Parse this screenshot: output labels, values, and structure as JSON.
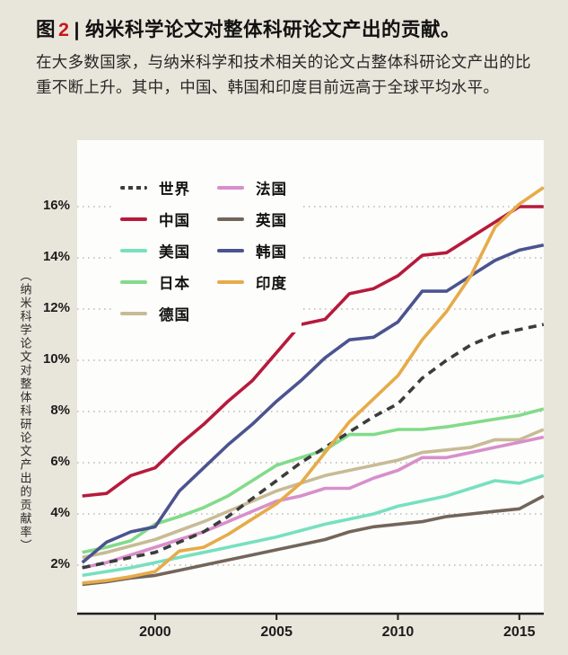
{
  "figure": {
    "title": {
      "prefix": "图",
      "number": "2",
      "separator": "|",
      "text": "纳米科学论文对整体科研论文产出的贡献。"
    },
    "subtitle": "在大多数国家，与纳米科学和技术相关的论文占整体科研论文产出的比重不断上升。其中，中国、韩国和印度目前远高于全球平均水平。"
  },
  "colors": {
    "page_background": "#e8e5da",
    "plot_background": "#fdfdfb",
    "title_number_red": "#c8161d",
    "gridline": "#bcbcb8",
    "axis": "#1f1f1f"
  },
  "chart_data": {
    "type": "line",
    "x": [
      1997,
      1998,
      1999,
      2000,
      2001,
      2002,
      2003,
      2004,
      2005,
      2006,
      2007,
      2008,
      2009,
      2010,
      2011,
      2012,
      2013,
      2014,
      2015,
      2016
    ],
    "x_ticks": [
      2000,
      2005,
      2010,
      2015
    ],
    "y_ticks": [
      2,
      4,
      6,
      8,
      10,
      12,
      14,
      16
    ],
    "y_tick_suffix": "%",
    "ylabel": "（纳米科学论文对整体科研论文产出的贡献率）",
    "ylim": [
      0,
      18.6
    ],
    "grid": "dotted-horizontal",
    "legend_position": "top-left-inside",
    "series": [
      {
        "name": "英国",
        "color": "#73655a",
        "dashed": false,
        "values": [
          1.25,
          1.35,
          1.5,
          1.6,
          1.8,
          2.0,
          2.2,
          2.4,
          2.6,
          2.8,
          3.0,
          3.3,
          3.5,
          3.6,
          3.7,
          3.9,
          4.0,
          4.1,
          4.2,
          4.7
        ]
      },
      {
        "name": "德国",
        "color": "#c7bb97",
        "dashed": false,
        "values": [
          2.3,
          2.5,
          2.75,
          3.0,
          3.35,
          3.7,
          4.1,
          4.5,
          4.9,
          5.2,
          5.5,
          5.7,
          5.9,
          6.1,
          6.4,
          6.5,
          6.6,
          6.9,
          6.9,
          7.3
        ]
      },
      {
        "name": "法国",
        "color": "#d88fcb",
        "dashed": false,
        "values": [
          1.9,
          2.1,
          2.4,
          2.7,
          3.0,
          3.3,
          3.7,
          4.1,
          4.5,
          4.7,
          5.0,
          5.0,
          5.4,
          5.7,
          6.2,
          6.2,
          6.4,
          6.6,
          6.8,
          7.0
        ]
      },
      {
        "name": "美国",
        "color": "#77e0c0",
        "dashed": false,
        "values": [
          1.6,
          1.75,
          1.9,
          2.1,
          2.3,
          2.5,
          2.7,
          2.9,
          3.1,
          3.35,
          3.6,
          3.8,
          4.0,
          4.3,
          4.5,
          4.7,
          5.0,
          5.3,
          5.2,
          5.5
        ]
      },
      {
        "name": "日本",
        "color": "#82db8b",
        "dashed": false,
        "values": [
          2.5,
          2.7,
          2.95,
          3.6,
          3.9,
          4.25,
          4.7,
          5.3,
          5.9,
          6.2,
          6.5,
          7.1,
          7.1,
          7.3,
          7.3,
          7.4,
          7.55,
          7.7,
          7.85,
          8.1
        ]
      },
      {
        "name": "世界",
        "color": "#3c3c3c",
        "dashed": true,
        "values": [
          1.9,
          2.1,
          2.3,
          2.5,
          2.9,
          3.3,
          3.9,
          4.6,
          5.3,
          6.0,
          6.6,
          7.2,
          7.8,
          8.3,
          9.3,
          10.0,
          10.6,
          11.0,
          11.2,
          11.4
        ]
      },
      {
        "name": "韩国",
        "color": "#4b548f",
        "dashed": false,
        "values": [
          2.1,
          2.9,
          3.3,
          3.5,
          4.9,
          5.8,
          6.7,
          7.5,
          8.4,
          9.2,
          10.1,
          10.8,
          10.9,
          11.5,
          12.7,
          12.7,
          13.3,
          13.9,
          14.3,
          14.5
        ]
      },
      {
        "name": "中国",
        "color": "#b61a3c",
        "dashed": false,
        "values": [
          4.7,
          4.8,
          5.5,
          5.8,
          6.7,
          7.5,
          8.4,
          9.2,
          10.3,
          11.4,
          11.6,
          12.6,
          12.8,
          13.3,
          14.1,
          14.2,
          14.8,
          15.4,
          16.0,
          16.0
        ]
      },
      {
        "name": "印度",
        "color": "#e6ab49",
        "dashed": false,
        "values": [
          1.3,
          1.4,
          1.55,
          1.75,
          2.55,
          2.7,
          3.2,
          3.8,
          4.4,
          5.2,
          6.4,
          7.6,
          8.5,
          9.4,
          10.8,
          11.9,
          13.3,
          15.2,
          16.1,
          16.75
        ]
      }
    ],
    "legend": {
      "column1": [
        "世界",
        "中国",
        "美国",
        "日本",
        "德国"
      ],
      "column2": [
        "法国",
        "英国",
        "韩国",
        "印度"
      ]
    }
  }
}
